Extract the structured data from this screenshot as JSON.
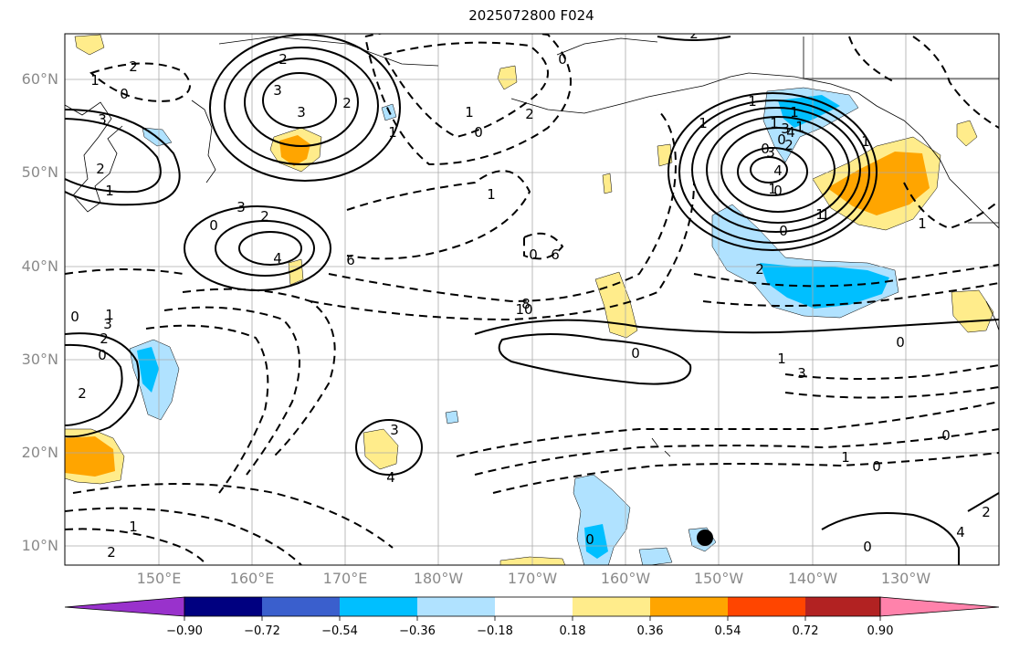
{
  "title": "2025072800 F024",
  "latitude_labels": [
    "60°N",
    "50°N",
    "40°N",
    "30°N",
    "20°N",
    "10°N"
  ],
  "longitude_labels": [
    "150°E",
    "160°E",
    "170°E",
    "180°W",
    "170°W",
    "160°W",
    "150°W",
    "140°W",
    "130°W"
  ],
  "colorbar": {
    "tick_labels": [
      "−0.90",
      "−0.72",
      "−0.54",
      "−0.36",
      "−0.18",
      "0.18",
      "0.36",
      "0.54",
      "0.72",
      "0.90"
    ],
    "colors": [
      "#9932cc",
      "#000080",
      "#3a5fcd",
      "#00bfff",
      "#b0e2ff",
      "#ffffff",
      "#ffec8b",
      "#ffa500",
      "#ff4500",
      "#b22222",
      "#ff82ab"
    ]
  },
  "contour_labels": [
    "2",
    "1",
    "0",
    "3",
    "2",
    "1",
    "2",
    "3",
    "3",
    "2",
    "1",
    "0",
    "1",
    "3",
    "2",
    "0",
    "4",
    "6",
    "0",
    "2",
    "1",
    "0",
    "1",
    "1",
    "0",
    "1",
    "0",
    "2",
    "1",
    "0",
    "1",
    "3",
    "3",
    "2",
    "0",
    "2",
    "1",
    "0",
    "3",
    "4",
    "6",
    "8",
    "10",
    "3",
    "4",
    "1",
    "1",
    "4",
    "3",
    "2",
    "0",
    "0",
    "1",
    "1",
    "1",
    "0",
    "1",
    "0",
    "0",
    "4",
    "2",
    "0",
    "2",
    "1",
    "0",
    "1",
    "2"
  ]
}
